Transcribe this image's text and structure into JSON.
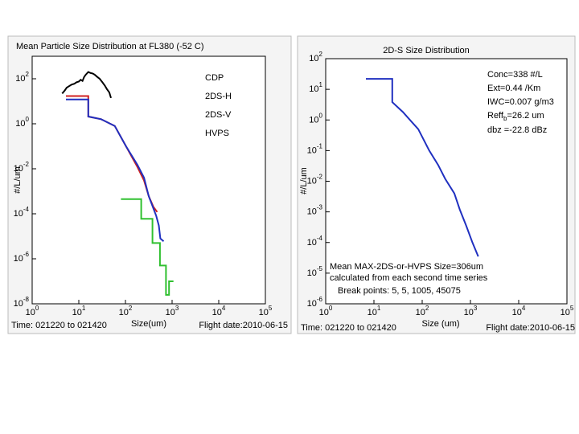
{
  "chart_data": [
    {
      "type": "line",
      "title": "Mean Particle Size Distribution at FL380 (-52 C)",
      "xlabel": "Size(um)",
      "ylabel": "#/L/um",
      "log_x": true,
      "log_y": true,
      "xlim": [
        1,
        100000
      ],
      "ylim": [
        1e-08,
        1000
      ],
      "xticks": [
        {
          "value": 1,
          "label": "10^0"
        },
        {
          "value": 10,
          "label": "10^1"
        },
        {
          "value": 100,
          "label": "10^2"
        },
        {
          "value": 1000,
          "label": "10^3"
        },
        {
          "value": 10000,
          "label": "10^4"
        },
        {
          "value": 100000,
          "label": "10^5"
        }
      ],
      "yticks": [
        {
          "value": 1e-08,
          "label": "10^-8"
        },
        {
          "value": 1e-06,
          "label": "10^-6"
        },
        {
          "value": 0.0001,
          "label": "10^-4"
        },
        {
          "value": 0.01,
          "label": "10^-2"
        },
        {
          "value": 1,
          "label": "10^0"
        },
        {
          "value": 100,
          "label": "10^2"
        }
      ],
      "annotations": [
        "Time: 021220 to 021420",
        "Flight date:2010-06-15"
      ],
      "series": [
        {
          "name": "CDP",
          "color": "#000000",
          "x": [
            4.4,
            5,
            5.5,
            6,
            7,
            8,
            9,
            10,
            11,
            12,
            13,
            14,
            16,
            18,
            20,
            22,
            25,
            28,
            32,
            36,
            40,
            45,
            49
          ],
          "values": [
            22,
            30,
            40,
            45,
            55,
            60,
            70,
            75,
            90,
            80,
            120,
            150,
            200,
            180,
            170,
            150,
            120,
            100,
            70,
            50,
            35,
            25,
            14
          ]
        },
        {
          "name": "2DS-H",
          "color": "#d02020",
          "x": [
            5.3,
            16,
            16,
            30,
            59,
            103,
            181,
            250,
            316,
            400,
            480
          ],
          "values": [
            17,
            17,
            2.1,
            1.6,
            0.8,
            0.1,
            0.012,
            0.003,
            0.0006,
            0.0002,
            0.00012
          ]
        },
        {
          "name": "2DS-V",
          "color": "#2030c0",
          "x": [
            5.3,
            16,
            16,
            30,
            59,
            103,
            181,
            250,
            316,
            457,
            520,
            560,
            660
          ],
          "values": [
            12,
            12,
            2.1,
            1.6,
            0.8,
            0.1,
            0.015,
            0.004,
            0.0006,
            8e-05,
            3e-05,
            8e-06,
            6e-06
          ]
        },
        {
          "name": "HVPS",
          "color": "#30c030",
          "x": [
            80,
            218,
            218,
            380,
            380,
            550,
            550,
            740,
            740,
            860,
            860,
            1070
          ],
          "values": [
            0.00045,
            0.00045,
            6e-05,
            6e-05,
            5e-06,
            5e-06,
            5e-07,
            5e-07,
            2.5e-08,
            2.5e-08,
            1e-07,
            1e-07
          ]
        }
      ]
    },
    {
      "type": "line",
      "title": "2D-S Size Distribution",
      "xlabel": "Size (um)",
      "ylabel": "#/L/um",
      "log_x": true,
      "log_y": true,
      "xlim": [
        1,
        100000
      ],
      "ylim": [
        1e-06,
        100
      ],
      "xticks": [
        {
          "value": 1,
          "label": "10^0"
        },
        {
          "value": 10,
          "label": "10^1"
        },
        {
          "value": 100,
          "label": "10^2"
        },
        {
          "value": 1000,
          "label": "10^3"
        },
        {
          "value": 10000,
          "label": "10^4"
        },
        {
          "value": 100000,
          "label": "10^5"
        }
      ],
      "yticks": [
        {
          "value": 1e-06,
          "label": "10^-6"
        },
        {
          "value": 1e-05,
          "label": "10^-5"
        },
        {
          "value": 0.0001,
          "label": "10^-4"
        },
        {
          "value": 0.001,
          "label": "10^-3"
        },
        {
          "value": 0.01,
          "label": "10^-2"
        },
        {
          "value": 0.1,
          "label": "10^-1"
        },
        {
          "value": 1,
          "label": "10^0"
        },
        {
          "value": 10,
          "label": "10^1"
        },
        {
          "value": 100,
          "label": "10^2"
        }
      ],
      "annotations": [
        "Conc=338 #/L",
        "Ext=0.44 /Km",
        "IWC=0.007 g/m3",
        "Reff_b=26.2 um",
        "dbz  =-22.8 dBz",
        "Mean MAX-2DS-or-HVPS Size=306um",
        "calculated from each second time series",
        "Break points: 5,  5, 1005, 45075",
        "Time: 021220 to 021420",
        "Flight date:2010-06-15"
      ],
      "series": [
        {
          "color": "#2030c0",
          "x": [
            6.8,
            24,
            24,
            40,
            83,
            140,
            214,
            300,
            464,
            600,
            820,
            1100,
            1450
          ],
          "values": [
            22,
            22,
            3.8,
            1.8,
            0.5,
            0.1,
            0.034,
            0.012,
            0.004,
            0.0012,
            0.00035,
            0.0001,
            3.5e-05
          ]
        }
      ]
    }
  ]
}
